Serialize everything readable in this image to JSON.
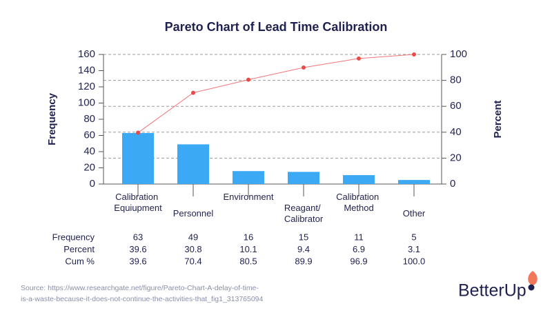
{
  "chart_data": {
    "type": "pareto",
    "title": "Pareto Chart of Lead Time Calibration",
    "y_label": "Frequency",
    "y2_label": "Percent",
    "categories": [
      "Calibration Equiupment",
      "Personnel",
      "Environment",
      "Reagant/ Calibrator",
      "Calibration Method",
      "Other"
    ],
    "series": [
      {
        "name": "Frequency",
        "type": "bar",
        "color": "#3ba9f4",
        "values": [
          63,
          49,
          16,
          15,
          11,
          5
        ]
      },
      {
        "name": "Percent",
        "values": [
          39.6,
          30.8,
          10.1,
          9.4,
          6.9,
          3.1
        ]
      },
      {
        "name": "Cum %",
        "type": "line",
        "axis": "y2",
        "color": "#f27474",
        "values": [
          39.6,
          70.4,
          80.5,
          89.9,
          96.9,
          100
        ],
        "value_labels": [
          "39.6",
          "70.4",
          "80.5",
          "89.9",
          "96.9",
          "100.0"
        ]
      }
    ],
    "ylim": [
      0,
      160
    ],
    "yticks": [
      0,
      20,
      40,
      60,
      80,
      100,
      120,
      140,
      160
    ],
    "y2lim": [
      0,
      100
    ],
    "y2ticks": [
      0,
      20,
      40,
      60,
      80,
      100
    ],
    "grid": true
  },
  "source": [
    "Source: https://www.researchgate.net/figure/Pareto-Chart-A-delay-of-time-",
    "is-a-waste-because-it-does-not-continue-the-activities-that_fig1_313765094"
  ],
  "logo": "BetterUp"
}
